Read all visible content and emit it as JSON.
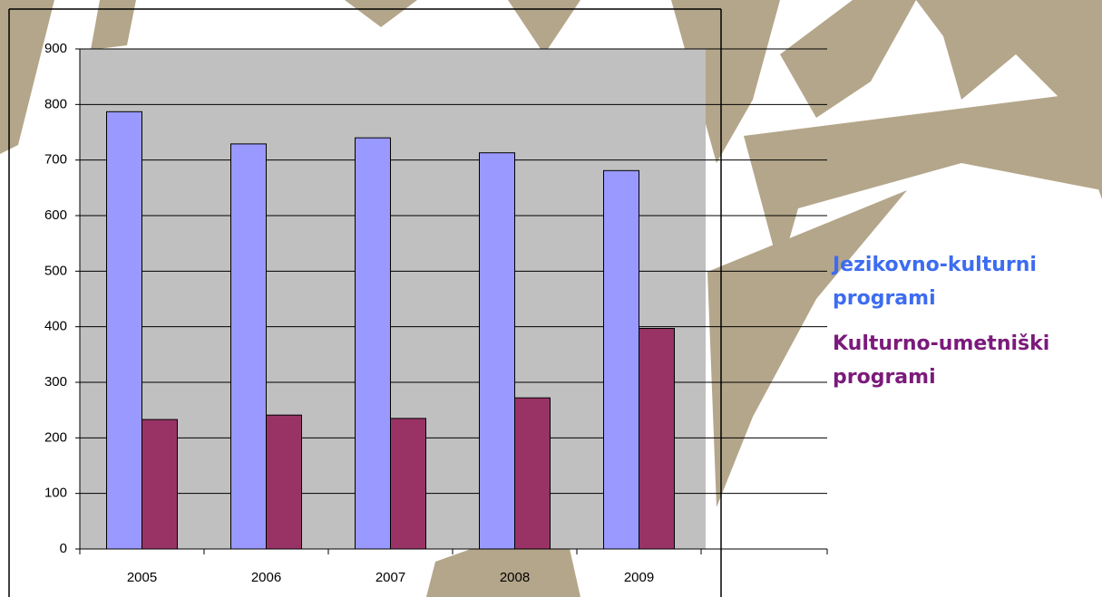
{
  "chart_data": {
    "type": "bar",
    "categories": [
      "2005",
      "2006",
      "2007",
      "2008",
      "2009"
    ],
    "series": [
      {
        "name": "Jezikovno-kulturni programi",
        "color": "#9999ff",
        "values": [
          787,
          729,
          740,
          713,
          681
        ]
      },
      {
        "name": "Kulturno-umetniški programi",
        "color": "#993366",
        "values": [
          233,
          241,
          235,
          272,
          397
        ]
      }
    ],
    "ylim": [
      0,
      900
    ],
    "yticks": [
      0,
      100,
      200,
      300,
      400,
      500,
      600,
      700,
      800,
      900
    ],
    "grid": true,
    "legend": "right"
  }
}
